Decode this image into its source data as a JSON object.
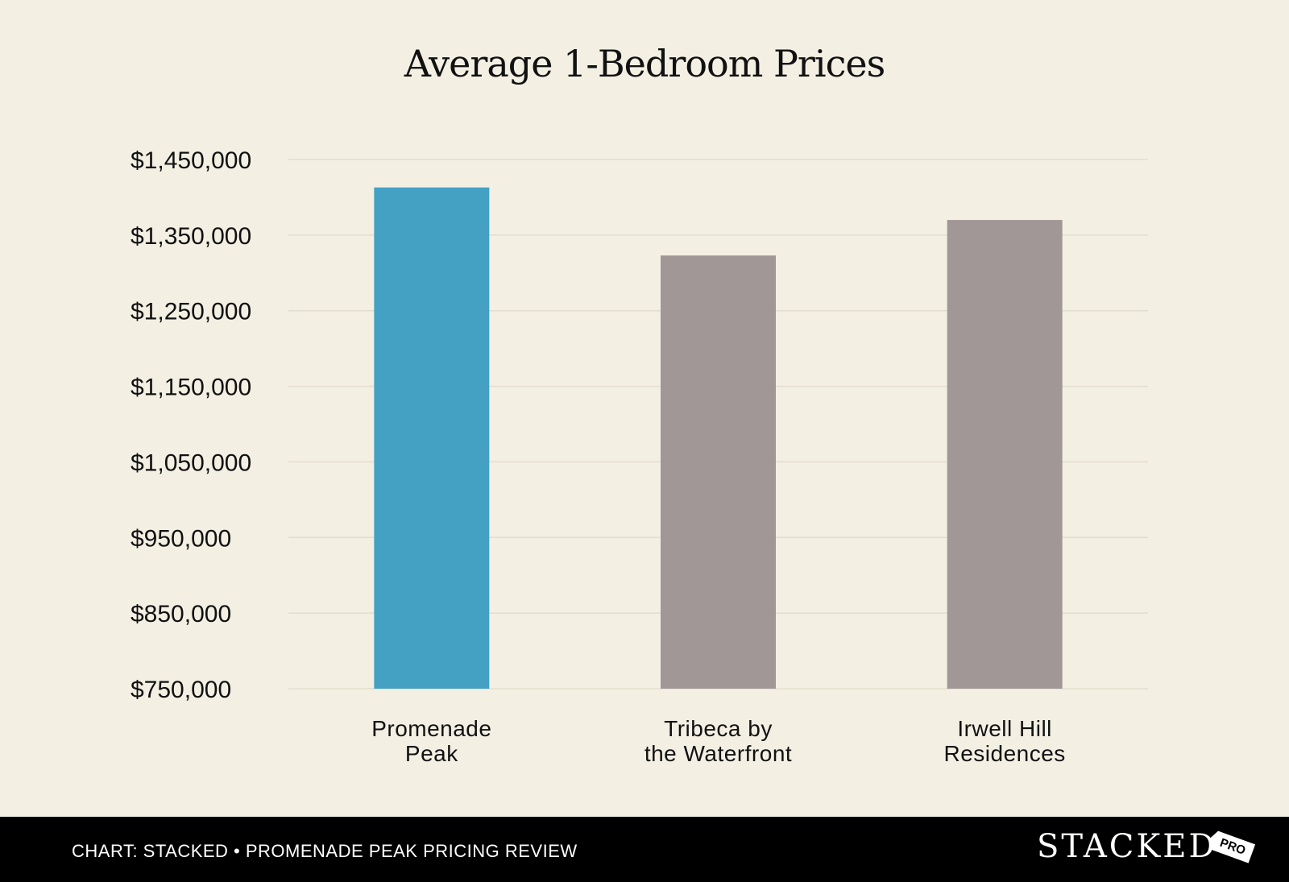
{
  "chart_data": {
    "type": "bar",
    "title": "Average 1-Bedroom Prices",
    "categories": [
      [
        "Promenade",
        "Peak"
      ],
      [
        "Tribeca by",
        "the Waterfront"
      ],
      [
        "Irwell Hill",
        "Residences"
      ]
    ],
    "values": [
      1413000,
      1323000,
      1370000
    ],
    "colors": [
      "#44a1c3",
      "#a09796",
      "#a09796"
    ],
    "ylim": [
      750000,
      1450000
    ],
    "yticks": [
      750000,
      850000,
      950000,
      1050000,
      1150000,
      1250000,
      1350000,
      1450000
    ],
    "ytick_labels": [
      "$750,000",
      "$850,000",
      "$950,000",
      "$1,050,000",
      "$1,150,000",
      "$1,250,000",
      "$1,350,000",
      "$1,450,000"
    ],
    "grid": true
  },
  "footer": {
    "caption": "CHART: STACKED • PROMENADE PEAK PRICING REVIEW",
    "brand": "STACKED",
    "badge": "PRO"
  }
}
